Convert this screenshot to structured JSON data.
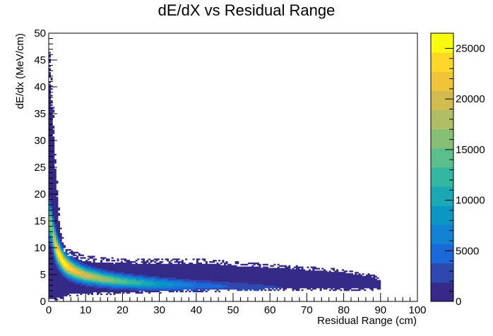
{
  "chart_data": {
    "type": "heatmap",
    "title": "dE/dX vs Residual Range",
    "xlabel": "Residual Range (cm)",
    "ylabel": "dE/dx (MeV/cm)",
    "xlim": [
      0,
      100
    ],
    "ylim": [
      0,
      50
    ],
    "x_ticks": [
      0,
      10,
      20,
      30,
      40,
      50,
      60,
      70,
      80,
      90,
      100
    ],
    "y_ticks": [
      0,
      5,
      10,
      15,
      20,
      25,
      30,
      35,
      40,
      45,
      50
    ],
    "z_range": [
      0,
      26500
    ],
    "z_ticks": [
      0,
      5000,
      10000,
      15000,
      20000,
      25000
    ],
    "colorscale": "parula",
    "colors": [
      "#352a87",
      "#2e48b0",
      "#1b68d9",
      "#1281d4",
      "#0a97c4",
      "#1aa8b5",
      "#33b7a0",
      "#5bbf8c",
      "#87bf77",
      "#b1bd64",
      "#d2bc4f",
      "#efc43a",
      "#fdd72a",
      "#f9fb0e"
    ],
    "grid": false,
    "legend": "colorbar-right",
    "bins": {
      "x": 200,
      "y": 200
    },
    "band_peak_curve": {
      "x": [
        0.5,
        1,
        2,
        3,
        4,
        5,
        7,
        10,
        15,
        20,
        25,
        30,
        40,
        50,
        60,
        70,
        80,
        90
      ],
      "y": [
        15,
        13,
        10,
        8.5,
        7.3,
        6.6,
        5.7,
        4.9,
        4.2,
        3.8,
        3.5,
        3.3,
        3.0,
        2.8,
        2.6,
        2.5,
        2.4,
        2.3
      ]
    },
    "band_peak_counts": {
      "x": [
        1,
        2,
        3,
        5,
        7,
        10,
        15,
        20,
        30,
        40,
        50,
        60,
        70,
        80,
        90
      ],
      "z": [
        16000,
        24000,
        26000,
        25000,
        22000,
        20000,
        17000,
        14000,
        9000,
        5500,
        3500,
        2200,
        1300,
        800,
        0
      ]
    },
    "band_edges": {
      "x": [
        0,
        1,
        2,
        3,
        4,
        5,
        10,
        20,
        30,
        40,
        50,
        60,
        70,
        80,
        88,
        90
      ],
      "ymin": [
        0,
        0,
        0.3,
        0.5,
        0.6,
        1.0,
        1.2,
        1.4,
        1.6,
        1.8,
        1.9,
        2.0,
        2.1,
        2.1,
        2.1,
        2.4
      ],
      "ymax": [
        50,
        40,
        25,
        15,
        11,
        10,
        8.5,
        8,
        8,
        8,
        7.5,
        7,
        6.5,
        6,
        5,
        4
      ]
    }
  }
}
